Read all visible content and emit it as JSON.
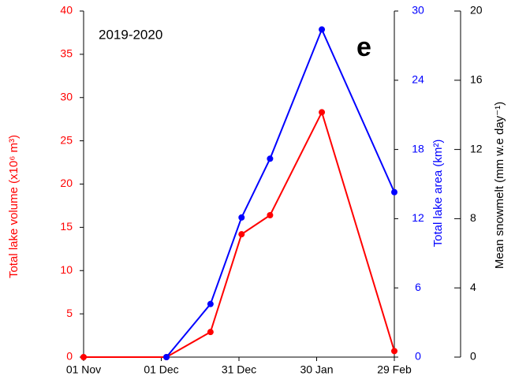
{
  "chart_data": {
    "type": "line",
    "annotations": [
      "2019-2020",
      "e"
    ],
    "ylabel": "Total lake volume (x10⁶ m³)",
    "y2label": "Total  lake area (km²)",
    "y3label": "Mean snowmelt (mm w.e day⁻¹)",
    "x": [
      0,
      32,
      49,
      61,
      72,
      92,
      120
    ],
    "xlim": [
      0,
      120
    ],
    "xticks": [
      {
        "value": 0,
        "label": "01 Nov"
      },
      {
        "value": 30,
        "label": "01 Dec"
      },
      {
        "value": 60,
        "label": "31 Dec"
      },
      {
        "value": 90,
        "label": "30 Jan"
      },
      {
        "value": 120,
        "label": "29 Feb"
      }
    ],
    "ylim": [
      0,
      40
    ],
    "yticks": [
      0,
      5,
      10,
      15,
      20,
      25,
      30,
      35,
      40
    ],
    "y2lim": [
      0,
      30
    ],
    "y2ticks": [
      0,
      6,
      12,
      18,
      24,
      30
    ],
    "y3lim": [
      0,
      20
    ],
    "y3ticks": [
      0,
      4,
      8,
      12,
      16,
      20
    ],
    "series": [
      {
        "name": "Total lake volume",
        "color": "#ff0000",
        "values": [
          0,
          0,
          2.9,
          14.2,
          16.4,
          28.3,
          0.7
        ]
      },
      {
        "name": "Total lake area",
        "color": "#0000ff",
        "axis": "y2",
        "values": [
          null,
          0,
          4.6,
          12.1,
          17.2,
          28.4,
          14.3
        ]
      }
    ]
  }
}
